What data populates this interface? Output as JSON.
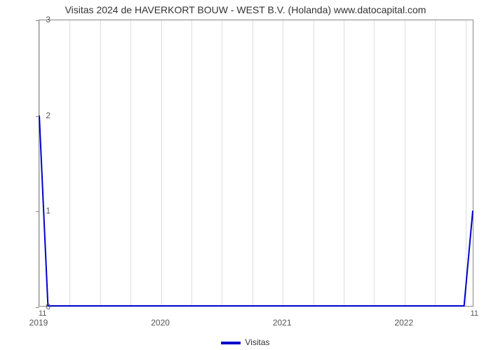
{
  "chart": {
    "type": "line",
    "title": "Visitas 2024 de HAVERKORT BOUW - WEST B.V. (Holanda) www.datocapital.com",
    "title_fontsize": 14,
    "title_color": "#333333",
    "background_color": "#ffffff",
    "plot_border_color": "#888888",
    "grid_color": "#dddddd",
    "series": {
      "name": "Visitas",
      "color": "#0000cc",
      "line_width": 2,
      "x": [
        0,
        0.02,
        0.98,
        1.0
      ],
      "y": [
        2.0,
        0.0,
        0.0,
        1.0
      ]
    },
    "y_axis": {
      "min": 0,
      "max": 3,
      "ticks": [
        0,
        1,
        2,
        3
      ],
      "tick_fontsize": 12,
      "tick_color": "#555555"
    },
    "x_axis": {
      "min": 0,
      "max": 1,
      "ticks": [
        {
          "pos": 0.0,
          "label": "2019"
        },
        {
          "pos": 0.28,
          "label": "2020"
        },
        {
          "pos": 0.56,
          "label": "2021"
        },
        {
          "pos": 0.84,
          "label": "2022"
        }
      ],
      "grid_positions": [
        0.0,
        0.07,
        0.14,
        0.21,
        0.28,
        0.35,
        0.42,
        0.49,
        0.56,
        0.63,
        0.7,
        0.77,
        0.84,
        0.91,
        0.98
      ],
      "tick_fontsize": 12,
      "tick_color": "#555555",
      "secondary_left": "11",
      "secondary_right": "11"
    },
    "legend": {
      "label": "Visitas",
      "swatch_color": "#0000cc",
      "fontsize": 12
    }
  }
}
